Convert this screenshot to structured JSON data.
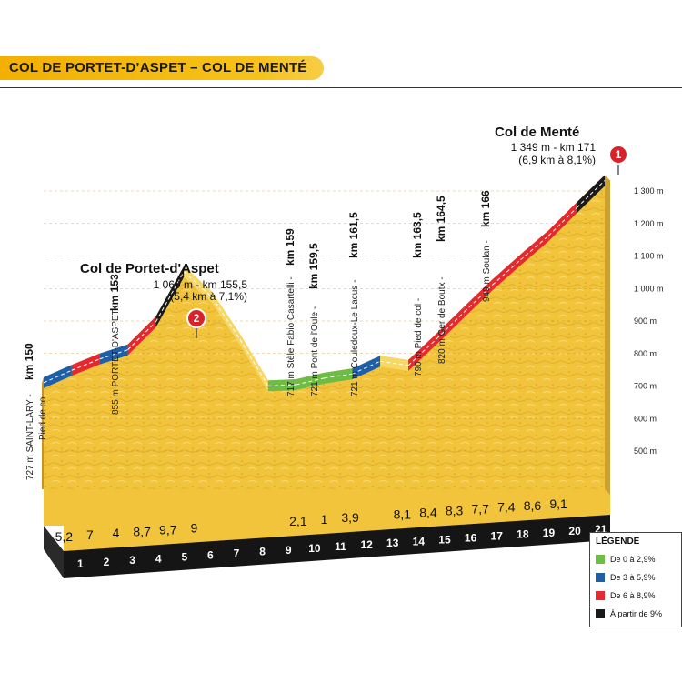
{
  "title": "COL DE PORTET-D’ASPET – COL DE MENTÉ",
  "legend": {
    "title": "LÉGENDE",
    "items": [
      {
        "label": "De 0 à 2,9%",
        "color": "#6dbd45"
      },
      {
        "label": "De 3 à 5,9%",
        "color": "#1f5fa8"
      },
      {
        "label": "De 6 à 8,9%",
        "color": "#e42a2f"
      },
      {
        "label": "À partir de 9%",
        "color": "#1a1a1a"
      }
    ]
  },
  "summits": [
    {
      "badge": "2",
      "name": "Col de Portet-d'Aspet",
      "info": "1 069 m - km 155,5",
      "detail": "(5,4 km à 7,1%)"
    },
    {
      "badge": "1",
      "name": "Col de Menté",
      "info": "1 349 m - km 171",
      "detail": "(6,9 km à 8,1%)"
    }
  ],
  "waypoints": [
    {
      "text": "727 m SAINT-LARY -",
      "km": "km 150",
      "sub": "Pied de col"
    },
    {
      "text": "855 m PORTET-D'ASPET",
      "km": "km 153",
      "sub": ""
    },
    {
      "text": "717 m Stèle Fabio Casartelli -",
      "km": "km 159",
      "sub": ""
    },
    {
      "text": "721 m Pont de l'Oule -",
      "km": "km 159,5",
      "sub": ""
    },
    {
      "text": "721 m Couledoux-Le Lacus -",
      "km": "km 161,5",
      "sub": ""
    },
    {
      "text": "790 m Pied de col -",
      "km": "km 163,5",
      "sub": ""
    },
    {
      "text": "820 m Ger de Boutx -",
      "km": "km 164,5",
      "sub": ""
    },
    {
      "text": "949 m Soulan -",
      "km": "km 166",
      "sub": ""
    }
  ],
  "chart_data": {
    "type": "area",
    "title": "COL DE PORTET-D’ASPET – COL DE MENTÉ",
    "xlabel": "",
    "ylabel": "",
    "x_unit": "km",
    "y_unit": "m",
    "ylim": [
      500,
      1300
    ],
    "yticks": [
      "500 m",
      "600 m",
      "700 m",
      "800 m",
      "900 m",
      "1 000 m",
      "1 100 m",
      "1 200 m",
      "1 300 m"
    ],
    "km_labels": [
      "1",
      "2",
      "3",
      "4",
      "5",
      "6",
      "7",
      "8",
      "9",
      "10",
      "11",
      "12",
      "13",
      "14",
      "15",
      "16",
      "17",
      "18",
      "19",
      "20",
      "21"
    ],
    "km_grades": [
      "5,2",
      "7",
      "4",
      "8,7",
      "9,7",
      "9",
      "",
      "",
      "",
      "2,1",
      "1",
      "3,9",
      "",
      "8,1",
      "8,4",
      "8,3",
      "7,7",
      "7,4",
      "8,6",
      "9,1",
      ""
    ],
    "profile": [
      {
        "km": 0,
        "alt": 727,
        "color": "blue"
      },
      {
        "km": 1,
        "alt": 765,
        "color": "red"
      },
      {
        "km": 2,
        "alt": 800,
        "color": "blue"
      },
      {
        "km": 3,
        "alt": 828,
        "color": "red"
      },
      {
        "km": 4,
        "alt": 914,
        "color": "black"
      },
      {
        "km": 5,
        "alt": 1069,
        "color": "none"
      },
      {
        "km": 6,
        "alt": 990,
        "color": "none"
      },
      {
        "km": 7,
        "alt": 860,
        "color": "none"
      },
      {
        "km": 8,
        "alt": 717,
        "color": "green"
      },
      {
        "km": 9,
        "alt": 721,
        "color": "green"
      },
      {
        "km": 10,
        "alt": 741,
        "color": "green"
      },
      {
        "km": 11,
        "alt": 754,
        "color": "blue"
      },
      {
        "km": 12,
        "alt": 793,
        "color": "none"
      },
      {
        "km": 13,
        "alt": 780,
        "color": "red"
      },
      {
        "km": 14,
        "alt": 861,
        "color": "red"
      },
      {
        "km": 15,
        "alt": 945,
        "color": "red"
      },
      {
        "km": 16,
        "alt": 1028,
        "color": "red"
      },
      {
        "km": 17,
        "alt": 1105,
        "color": "red"
      },
      {
        "km": 18,
        "alt": 1179,
        "color": "red"
      },
      {
        "km": 19,
        "alt": 1265,
        "color": "black"
      },
      {
        "km": 20,
        "alt": 1349,
        "color": "none"
      }
    ]
  }
}
